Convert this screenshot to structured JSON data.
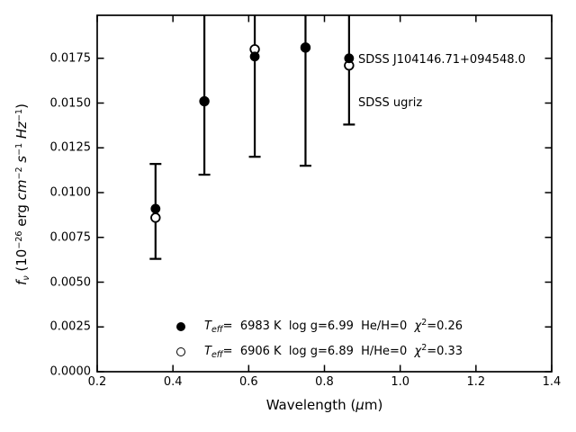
{
  "figure": {
    "background": "#ffffff",
    "frame_color": "#000000"
  },
  "annotation": {
    "line1": "SDSS J104146.71+094548.0",
    "line2": "SDSS ugriz"
  },
  "legend": {
    "rows": [
      {
        "marker": "filled-circle",
        "parts": [
          {
            "t": "T",
            "s": "i"
          },
          {
            "t": "eff",
            "s": "subi"
          },
          {
            "t": "=  6983 K  log g=6.99  He/H=0  "
          },
          {
            "t": "χ",
            "s": "i"
          },
          {
            "t": "2",
            "s": "sup"
          },
          {
            "t": "=0.26"
          }
        ]
      },
      {
        "marker": "open-circle",
        "parts": [
          {
            "t": "T",
            "s": "i"
          },
          {
            "t": "eff",
            "s": "subi"
          },
          {
            "t": "=  6906 K  log g=6.89  H/He=0  "
          },
          {
            "t": "χ",
            "s": "i"
          },
          {
            "t": "2",
            "s": "sup"
          },
          {
            "t": "=0.33"
          }
        ]
      }
    ]
  },
  "chart_data": {
    "type": "scatter",
    "title": "",
    "xlabel": "Wavelength (μm)",
    "ylabel": "fν (10−26 erg cm−2 s−1 Hz−1)",
    "xlabel_parts": [
      {
        "t": "Wavelength ("
      },
      {
        "t": "μ",
        "s": "i"
      },
      {
        "t": "m)"
      }
    ],
    "ylabel_parts": [
      {
        "t": "f",
        "s": "i"
      },
      {
        "t": "ν",
        "s": "subi"
      },
      {
        "t": " (10"
      },
      {
        "t": "−26",
        "s": "sup"
      },
      {
        "t": " erg "
      },
      {
        "t": "cm",
        "s": "i"
      },
      {
        "t": "−2",
        "s": "sup"
      },
      {
        "t": " "
      },
      {
        "t": "s",
        "s": "i"
      },
      {
        "t": "−1",
        "s": "sup"
      },
      {
        "t": " "
      },
      {
        "t": "Hz",
        "s": "i"
      },
      {
        "t": "−1",
        "s": "sup"
      },
      {
        "t": ")"
      }
    ],
    "xlim": [
      0.2,
      1.4
    ],
    "ylim": [
      0.0,
      0.0199
    ],
    "x_ticks": [
      0.2,
      0.4,
      0.6,
      0.8,
      1.0,
      1.2,
      1.4
    ],
    "x_tick_labels": [
      "0.2",
      "0.4",
      "0.6",
      "0.8",
      "1.0",
      "1.2",
      "1.4"
    ],
    "y_ticks": [
      0.0,
      0.0025,
      0.005,
      0.0075,
      0.01,
      0.0125,
      0.015,
      0.0175
    ],
    "y_tick_labels": [
      "0.0000",
      "0.0025",
      "0.0050",
      "0.0075",
      "0.0100",
      "0.0125",
      "0.0150",
      "0.0175"
    ],
    "bands": [
      "u",
      "g",
      "r",
      "i",
      "z"
    ],
    "x": [
      0.354,
      0.483,
      0.616,
      0.75,
      0.865
    ],
    "series": [
      {
        "name": "Teff=6983 K log g=6.99 He/H=0 chi2=0.26",
        "marker": "filled-circle",
        "values": [
          0.0091,
          0.0151,
          0.0176,
          0.0181,
          0.0175
        ]
      },
      {
        "name": "Teff=6906 K log g=6.89 H/He=0 chi2=0.33",
        "marker": "open-circle",
        "values": [
          0.0086,
          0.0151,
          0.018,
          0.0181,
          0.0171
        ]
      }
    ],
    "error_bars": {
      "lower": [
        0.0063,
        0.011,
        0.012,
        0.0115,
        0.0138
      ],
      "upper": [
        0.0116,
        null,
        null,
        null,
        null
      ],
      "upper_clipped": [
        false,
        true,
        true,
        true,
        true
      ]
    },
    "grid": false,
    "tick_direction": "in",
    "legend_position": "lower-center-inside",
    "color": "#000000"
  }
}
